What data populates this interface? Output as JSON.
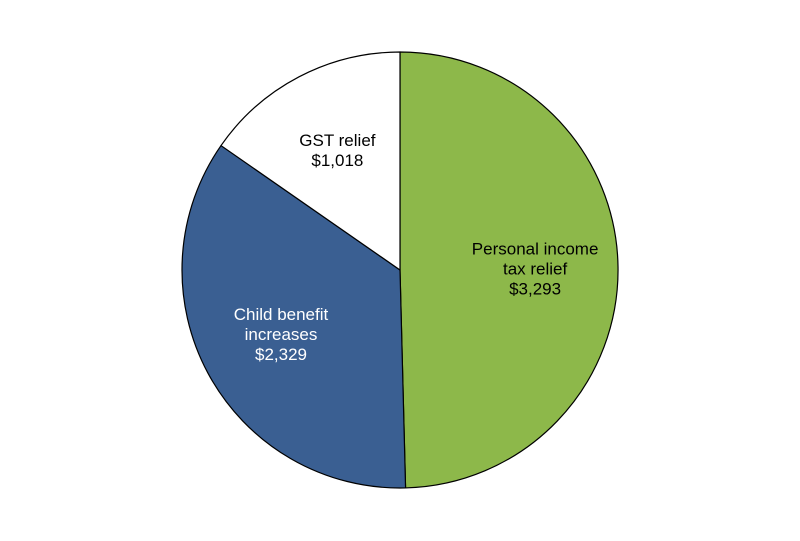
{
  "chart_data": {
    "type": "pie",
    "title": "",
    "slices": [
      {
        "label_lines": [
          "Personal income",
          "tax relief"
        ],
        "value_label": "$3,293",
        "value": 3293,
        "color": "#8db84a",
        "text_color": "#000000"
      },
      {
        "label_lines": [
          "Child benefit",
          "increases"
        ],
        "value_label": "$2,329",
        "value": 2329,
        "color": "#3a5f92",
        "text_color": "#ffffff"
      },
      {
        "label_lines": [
          "GST relief"
        ],
        "value_label": "$1,018",
        "value": 1018,
        "color": "#ffffff",
        "text_color": "#000000"
      }
    ],
    "start_angle_deg": 0,
    "direction": "clockwise",
    "stroke_color": "#000000"
  }
}
